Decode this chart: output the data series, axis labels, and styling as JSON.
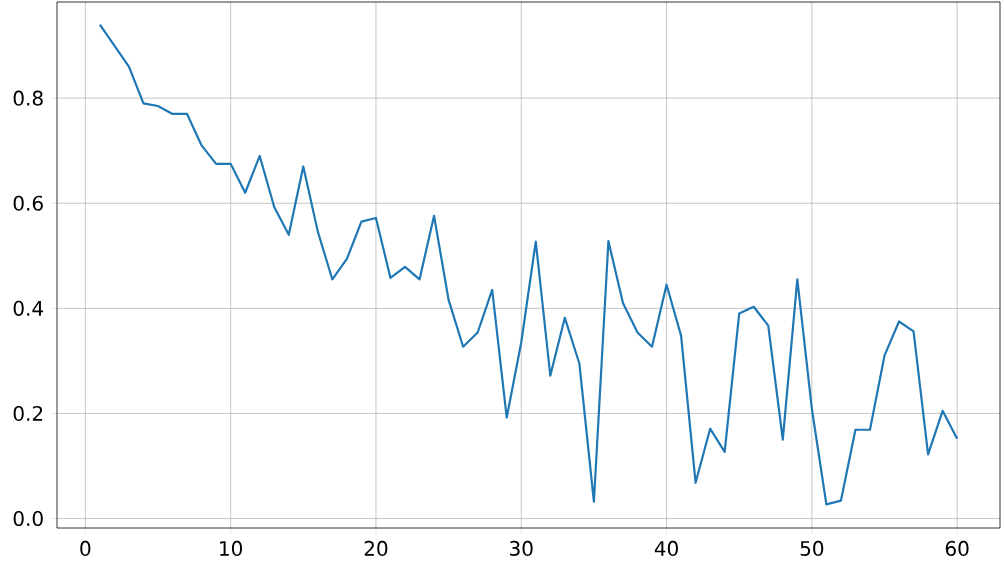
{
  "chart_data": {
    "type": "line",
    "x": [
      1,
      2,
      3,
      4,
      5,
      6,
      7,
      8,
      9,
      10,
      11,
      12,
      13,
      14,
      15,
      16,
      17,
      18,
      19,
      20,
      21,
      22,
      23,
      24,
      25,
      26,
      27,
      28,
      29,
      30,
      31,
      32,
      33,
      34,
      35,
      36,
      37,
      38,
      39,
      40,
      41,
      42,
      43,
      44,
      45,
      46,
      47,
      48,
      49,
      50,
      51,
      52,
      53,
      54,
      55,
      56,
      57,
      58,
      59,
      60
    ],
    "series": [
      {
        "color": "#1f77b4",
        "values": [
          0.94,
          0.9,
          0.86,
          0.79,
          0.785,
          0.77,
          0.77,
          0.71,
          0.675,
          0.675,
          0.62,
          0.69,
          0.593,
          0.54,
          0.67,
          0.546,
          0.455,
          0.494,
          0.565,
          0.572,
          0.458,
          0.479,
          0.455,
          0.576,
          0.416,
          0.327,
          0.354,
          0.435,
          0.192,
          0.335,
          0.527,
          0.272,
          0.382,
          0.295,
          0.032,
          0.528,
          0.41,
          0.354,
          0.327,
          0.445,
          0.348,
          0.068,
          0.171,
          0.127,
          0.39,
          0.403,
          0.367,
          0.15,
          0.455,
          0.209,
          0.027,
          0.034,
          0.169,
          0.169,
          0.31,
          0.375,
          0.356,
          0.122,
          0.205,
          0.152
        ]
      }
    ],
    "xlim": [
      -1.95,
      62.95
    ],
    "ylim": [
      -0.018,
      0.983
    ],
    "xticks": [
      0,
      10,
      20,
      30,
      40,
      50,
      60
    ],
    "yticks": [
      {
        "value": 0,
        "label": "0.0"
      },
      {
        "value": 0.2,
        "label": "0.2"
      },
      {
        "value": 0.4,
        "label": "0.4"
      },
      {
        "value": 0.6,
        "label": "0.6"
      },
      {
        "value": 0.8,
        "label": "0.8"
      }
    ],
    "grid": true,
    "line_style": "solid",
    "marker": "none"
  }
}
